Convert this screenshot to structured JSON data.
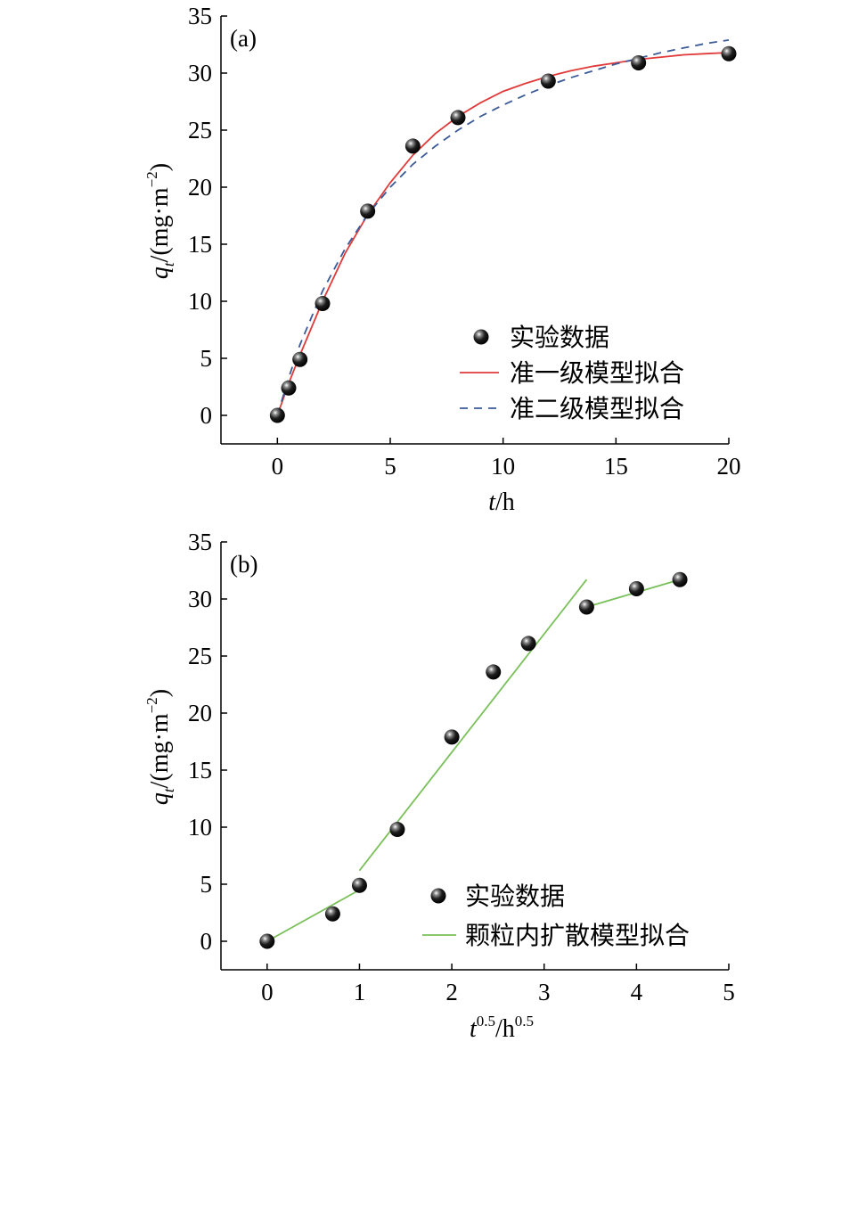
{
  "chart_data": [
    {
      "type": "scatter",
      "panel_label": "(a)",
      "xlabel": {
        "main": "t",
        "unit": "/h"
      },
      "ylabel": {
        "main": "q",
        "sub": "t",
        "unit": "/(mg·m",
        "exp": "−2",
        "close": ")"
      },
      "xlim": [
        -2.5,
        20
      ],
      "ylim": [
        -2.5,
        35
      ],
      "xticks": [
        0,
        5,
        10,
        15,
        20
      ],
      "yticks": [
        0,
        5,
        10,
        15,
        20,
        25,
        30,
        35
      ],
      "grid": false,
      "legend_position": "bottom-right",
      "series": [
        {
          "name": "实验数据",
          "kind": "points",
          "color": "#000000",
          "x": [
            0,
            0.5,
            1,
            2,
            4,
            6,
            8,
            12,
            16,
            20
          ],
          "y": [
            0,
            2.4,
            4.9,
            9.8,
            17.9,
            23.6,
            26.1,
            29.3,
            30.9,
            31.7
          ]
        },
        {
          "name": "准一级模型拟合",
          "kind": "line",
          "color": "#e03a3a",
          "x": [
            0,
            0.5,
            1,
            2,
            3,
            4,
            5,
            6,
            7,
            8,
            9,
            10,
            11,
            12,
            13,
            14,
            15,
            16,
            17,
            18,
            19,
            20
          ],
          "y": [
            0,
            2.8,
            5.3,
            10.0,
            14.2,
            17.6,
            20.4,
            22.8,
            24.7,
            26.2,
            27.4,
            28.4,
            29.1,
            29.7,
            30.2,
            30.6,
            30.9,
            31.2,
            31.4,
            31.6,
            31.7,
            31.8
          ]
        },
        {
          "name": "准二级模型拟合",
          "kind": "dashed",
          "color": "#3b5a98",
          "x": [
            0,
            0.5,
            1,
            2,
            3,
            4,
            5,
            6,
            7,
            8,
            9,
            10,
            11,
            12,
            13,
            14,
            15,
            16,
            17,
            18,
            19,
            20
          ],
          "y": [
            0,
            3.3,
            6.2,
            10.9,
            14.6,
            17.6,
            20.0,
            22.0,
            23.6,
            25.0,
            26.2,
            27.2,
            28.1,
            28.9,
            29.6,
            30.2,
            30.8,
            31.3,
            31.8,
            32.2,
            32.6,
            32.9
          ]
        }
      ]
    },
    {
      "type": "scatter",
      "panel_label": "(b)",
      "xlabel": {
        "main": "t",
        "sup": "0.5",
        "unit": "/h",
        "unit_sup": "0.5"
      },
      "ylabel": {
        "main": "q",
        "sub": "t",
        "unit": "/(mg·m",
        "exp": "−2",
        "close": ")"
      },
      "xlim": [
        -0.5,
        5
      ],
      "ylim": [
        -2.5,
        35
      ],
      "xticks": [
        0,
        1,
        2,
        3,
        4,
        5
      ],
      "yticks": [
        0,
        5,
        10,
        15,
        20,
        25,
        30,
        35
      ],
      "grid": false,
      "legend_position": "bottom-right",
      "series": [
        {
          "name": "实验数据",
          "kind": "points",
          "color": "#000000",
          "x": [
            0,
            0.71,
            1.0,
            1.41,
            2.0,
            2.45,
            2.83,
            3.46,
            4.0,
            4.47
          ],
          "y": [
            0,
            2.4,
            4.9,
            9.8,
            17.9,
            23.6,
            26.1,
            29.3,
            30.9,
            31.7
          ]
        },
        {
          "name": "颗粒内扩散模型拟合",
          "kind": "segments",
          "color": "#7ac05a",
          "segments": [
            {
              "x": [
                0,
                1.0
              ],
              "y": [
                0,
                4.5
              ]
            },
            {
              "x": [
                1.0,
                3.46
              ],
              "y": [
                6.2,
                31.7
              ]
            },
            {
              "x": [
                3.46,
                4.47
              ],
              "y": [
                29.3,
                31.7
              ]
            }
          ]
        }
      ]
    }
  ]
}
